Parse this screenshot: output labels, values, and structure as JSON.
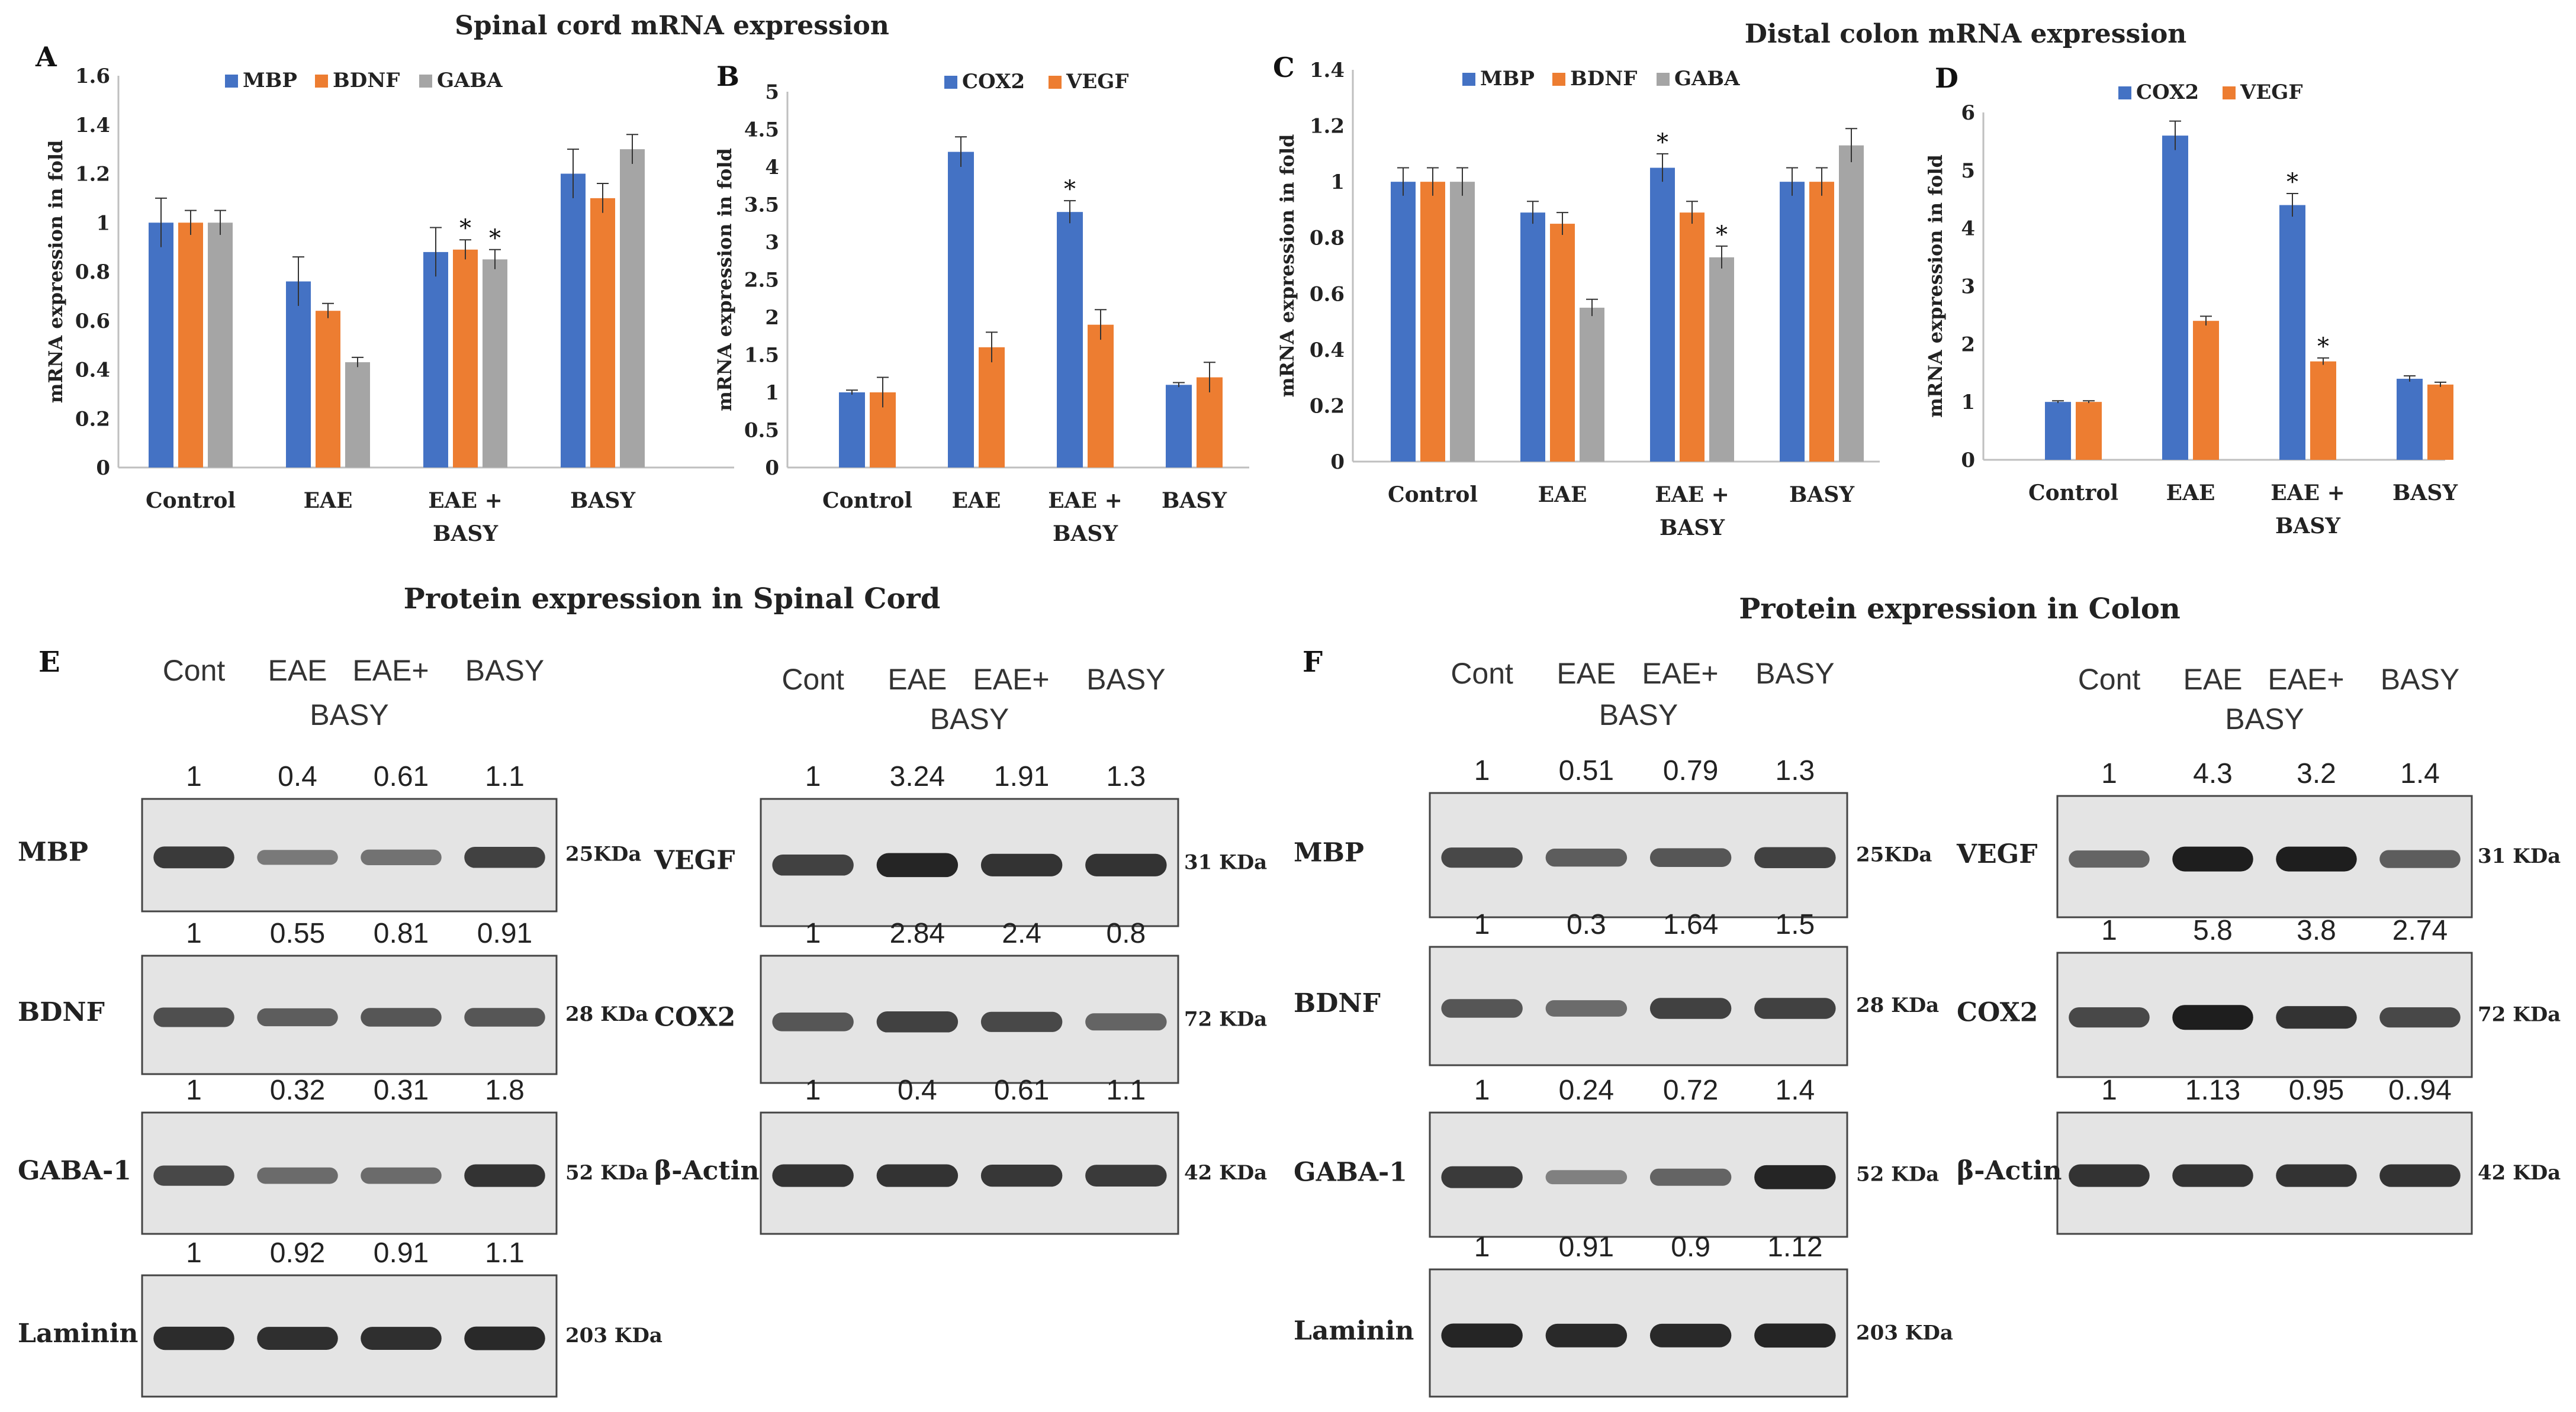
{
  "colors": {
    "blue": "#4472C4",
    "orange": "#ED7D31",
    "gray": "#A5A5A5",
    "axis": "#BFBFBF"
  },
  "sections": {
    "spinal_mrna_title": "Spinal cord mRNA expression",
    "colon_mrna_title": "Distal colon mRNA expression",
    "spinal_protein_title": "Protein expression in Spinal Cord",
    "colon_protein_title": "Protein expression in Colon"
  },
  "chart_data": [
    {
      "id": "A",
      "panel_label": "A",
      "type": "bar",
      "title": "Spinal cord mRNA expression",
      "ylabel": "mRNA expression in fold",
      "xlabel": "",
      "ylim": [
        0,
        1.6
      ],
      "yticks": [
        "0",
        "0.2",
        "0.4",
        "0.6",
        "0.8",
        "1",
        "1.2",
        "1.4",
        "1.6"
      ],
      "categories": [
        [
          "Control"
        ],
        [
          "EAE"
        ],
        [
          "EAE +",
          "BASY"
        ],
        [
          "BASY"
        ]
      ],
      "series": [
        {
          "name": "MBP",
          "color": "#4472C4",
          "values": [
            1.0,
            0.76,
            0.88,
            1.2
          ],
          "errors": [
            0.1,
            0.1,
            0.1,
            0.1
          ],
          "stars": [
            false,
            false,
            false,
            false
          ]
        },
        {
          "name": "BDNF",
          "color": "#ED7D31",
          "values": [
            1.0,
            0.64,
            0.89,
            1.1
          ],
          "errors": [
            0.05,
            0.03,
            0.04,
            0.06
          ],
          "stars": [
            false,
            false,
            true,
            false
          ]
        },
        {
          "name": "GABA",
          "color": "#A5A5A5",
          "values": [
            1.0,
            0.43,
            0.85,
            1.3
          ],
          "errors": [
            0.05,
            0.02,
            0.04,
            0.06
          ],
          "stars": [
            false,
            false,
            true,
            false
          ]
        }
      ]
    },
    {
      "id": "B",
      "panel_label": "B",
      "type": "bar",
      "title": "",
      "ylabel": "mRNA expression in fold",
      "xlabel": "",
      "ylim": [
        0,
        5
      ],
      "yticks": [
        "0",
        "0.5",
        "1",
        "1.5",
        "2",
        "2.5",
        "3",
        "3.5",
        "4",
        "4.5",
        "5"
      ],
      "categories": [
        [
          "Control"
        ],
        [
          "EAE"
        ],
        [
          "EAE +",
          "BASY"
        ],
        [
          "BASY"
        ]
      ],
      "series": [
        {
          "name": "COX2",
          "color": "#4472C4",
          "values": [
            1.0,
            4.2,
            3.4,
            1.1
          ],
          "errors": [
            0.03,
            0.2,
            0.15,
            0.03
          ],
          "stars": [
            false,
            false,
            true,
            false
          ]
        },
        {
          "name": "VEGF",
          "color": "#ED7D31",
          "values": [
            1.0,
            1.6,
            1.9,
            1.2
          ],
          "errors": [
            0.2,
            0.2,
            0.2,
            0.2
          ],
          "stars": [
            false,
            false,
            false,
            false
          ]
        }
      ]
    },
    {
      "id": "C",
      "panel_label": "C",
      "type": "bar",
      "title": "Distal colon mRNA expression",
      "ylabel": "mRNA expression in fold",
      "xlabel": "",
      "ylim": [
        0,
        1.4
      ],
      "yticks": [
        "0",
        "0.2",
        "0.4",
        "0.6",
        "0.8",
        "1",
        "1.2",
        "1.4"
      ],
      "categories": [
        [
          "Control"
        ],
        [
          "EAE"
        ],
        [
          "EAE +",
          "BASY"
        ],
        [
          "BASY"
        ]
      ],
      "series": [
        {
          "name": "MBP",
          "color": "#4472C4",
          "values": [
            1.0,
            0.89,
            1.05,
            1.0
          ],
          "errors": [
            0.05,
            0.04,
            0.05,
            0.05
          ],
          "stars": [
            false,
            false,
            true,
            false
          ]
        },
        {
          "name": "BDNF",
          "color": "#ED7D31",
          "values": [
            1.0,
            0.85,
            0.89,
            1.0
          ],
          "errors": [
            0.05,
            0.04,
            0.04,
            0.05
          ],
          "stars": [
            false,
            false,
            false,
            false
          ]
        },
        {
          "name": "GABA",
          "color": "#A5A5A5",
          "values": [
            1.0,
            0.55,
            0.73,
            1.13
          ],
          "errors": [
            0.05,
            0.03,
            0.04,
            0.06
          ],
          "stars": [
            false,
            false,
            true,
            false
          ]
        }
      ]
    },
    {
      "id": "D",
      "panel_label": "D",
      "type": "bar",
      "title": "",
      "ylabel": "mRNA expression in fold",
      "xlabel": "",
      "ylim": [
        0,
        6
      ],
      "yticks": [
        "0",
        "1",
        "2",
        "3",
        "4",
        "5",
        "6"
      ],
      "categories": [
        [
          "Control"
        ],
        [
          "EAE"
        ],
        [
          "EAE +",
          "BASY"
        ],
        [
          "BASY"
        ]
      ],
      "series": [
        {
          "name": "COX2",
          "color": "#4472C4",
          "values": [
            1.0,
            5.6,
            4.4,
            1.4
          ],
          "errors": [
            0.02,
            0.25,
            0.2,
            0.05
          ],
          "stars": [
            false,
            false,
            true,
            false
          ]
        },
        {
          "name": "VEGF",
          "color": "#ED7D31",
          "values": [
            1.0,
            2.4,
            1.7,
            1.3
          ],
          "errors": [
            0.02,
            0.08,
            0.06,
            0.04
          ],
          "stars": [
            false,
            false,
            true,
            false
          ]
        }
      ]
    }
  ],
  "blots": [
    {
      "panel_label": "E",
      "groups": [
        {
          "headers": [
            "Cont",
            "EAE",
            "EAE+",
            "BASY",
            "BASY"
          ],
          "rows": [
            {
              "name": "MBP",
              "size": "25KDa",
              "values": [
                "1",
                "0.4",
                "0.61",
                "1.1"
              ],
              "bands": [
                0.8,
                0.35,
                0.4,
                0.75
              ]
            },
            {
              "name": "BDNF",
              "size": "28 KDa",
              "values": [
                "1",
                "0.55",
                "0.81",
                "0.91"
              ],
              "bands": [
                0.65,
                0.55,
                0.6,
                0.6
              ]
            },
            {
              "name": "GABA-1",
              "size": "52 KDa",
              "values": [
                "1",
                "0.32",
                "0.31",
                "1.8"
              ],
              "bands": [
                0.7,
                0.45,
                0.45,
                0.85
              ]
            },
            {
              "name": "Laminin",
              "size": "203 KDa",
              "values": [
                "1",
                "0.92",
                "0.91",
                "1.1"
              ],
              "bands": [
                0.9,
                0.88,
                0.88,
                0.92
              ]
            }
          ]
        },
        {
          "headers": [
            "Cont",
            "EAE",
            "EAE+",
            "BASY",
            "BASY"
          ],
          "rows": [
            {
              "name": "VEGF",
              "size": "31 KDa",
              "values": [
                "1",
                "3.24",
                "1.91",
                "1.3"
              ],
              "bands": [
                0.75,
                0.95,
                0.85,
                0.85
              ]
            },
            {
              "name": "COX2",
              "size": "72 KDa",
              "values": [
                "1",
                "2.84",
                "2.4",
                "0.8"
              ],
              "bands": [
                0.6,
                0.75,
                0.7,
                0.5
              ]
            },
            {
              "name": "β-Actin",
              "size": "42 KDa",
              "values": [
                "1",
                "0.4",
                "0.61",
                "1.1"
              ],
              "bands": [
                0.85,
                0.85,
                0.82,
                0.8
              ]
            }
          ]
        }
      ]
    },
    {
      "panel_label": "F",
      "groups": [
        {
          "headers": [
            "Cont",
            "EAE",
            "EAE+",
            "BASY",
            "BASY"
          ],
          "rows": [
            {
              "name": "MBP",
              "size": "25KDa",
              "values": [
                "1",
                "0.51",
                "0.79",
                "1.3"
              ],
              "bands": [
                0.7,
                0.55,
                0.6,
                0.75
              ]
            },
            {
              "name": "BDNF",
              "size": "28 KDa",
              "values": [
                "1",
                "0.3",
                "1.64",
                "1.5"
              ],
              "bands": [
                0.6,
                0.45,
                0.75,
                0.75
              ]
            },
            {
              "name": "GABA-1",
              "size": "52 KDa",
              "values": [
                "1",
                "0.24",
                "0.72",
                "1.4"
              ],
              "bands": [
                0.8,
                0.3,
                0.5,
                0.95
              ]
            },
            {
              "name": "Laminin",
              "size": "203 KDa",
              "values": [
                "1",
                "0.91",
                "0.9",
                "1.12"
              ],
              "bands": [
                0.95,
                0.92,
                0.92,
                0.95
              ]
            }
          ]
        },
        {
          "headers": [
            "Cont",
            "EAE",
            "EAE+",
            "BASY",
            "BASY"
          ],
          "rows": [
            {
              "name": "VEGF",
              "size": "31 KDa",
              "values": [
                "1",
                "4.3",
                "3.2",
                "1.4"
              ],
              "bands": [
                0.5,
                1.0,
                1.0,
                0.55
              ]
            },
            {
              "name": "COX2",
              "size": "72 KDa",
              "values": [
                "1",
                "5.8",
                "3.8",
                "2.74"
              ],
              "bands": [
                0.7,
                1.0,
                0.85,
                0.7
              ]
            },
            {
              "name": "β-Actin",
              "size": "42 KDa",
              "values": [
                "1",
                "1.13",
                "0.95",
                "0..94"
              ],
              "bands": [
                0.85,
                0.85,
                0.85,
                0.85
              ]
            }
          ]
        }
      ]
    }
  ]
}
